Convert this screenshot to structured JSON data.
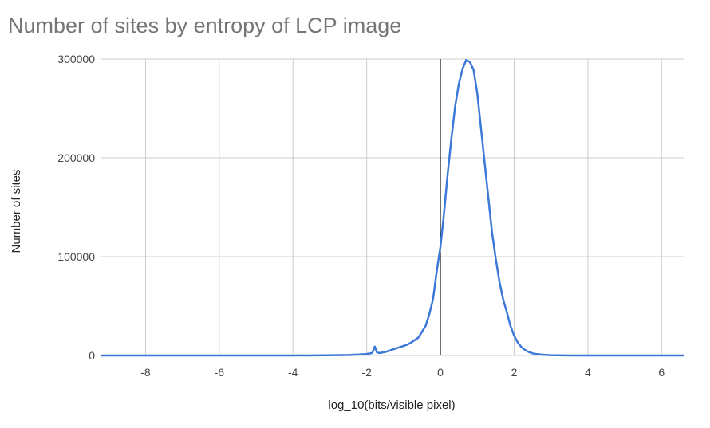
{
  "chart_data": {
    "type": "line",
    "title": "Number of sites by entropy of LCP image",
    "xlabel": "log_10(bits/visible pixel)",
    "ylabel": "Number of sites",
    "xlim": [
      -9.2,
      6.6
    ],
    "ylim": [
      0,
      300000
    ],
    "x_ticks": [
      -8,
      -6,
      -4,
      -2,
      0,
      2,
      4,
      6
    ],
    "x_tick_labels": [
      "-8",
      "-6",
      "-4",
      "-2",
      "0",
      "2",
      "4",
      "6"
    ],
    "y_ticks": [
      0,
      100000,
      200000,
      300000
    ],
    "y_tick_labels": [
      "0",
      "100000",
      "200000",
      "300000"
    ],
    "grid": true,
    "legend": "none",
    "colors": {
      "series": "#3c78d8",
      "grid": "#cccccc",
      "zero_line": "#000000"
    },
    "series": [
      {
        "x": [
          -9.2,
          -4,
          -3,
          -2.5,
          -2.2,
          -2.0,
          -1.85,
          -1.78,
          -1.72,
          -1.65,
          -1.5,
          -1.3,
          -1.1,
          -0.9,
          -0.8,
          -0.6,
          -0.4,
          -0.3,
          -0.2,
          -0.1,
          0,
          0.1,
          0.2,
          0.3,
          0.4,
          0.5,
          0.6,
          0.7,
          0.8,
          0.9,
          1.0,
          1.1,
          1.2,
          1.3,
          1.4,
          1.5,
          1.6,
          1.7,
          1.8,
          1.9,
          2.0,
          2.1,
          2.2,
          2.3,
          2.4,
          2.5,
          2.6,
          2.8,
          3.0,
          3.3,
          3.6,
          4.0,
          6.6
        ],
        "y": [
          0,
          0,
          200,
          500,
          1000,
          1500,
          2500,
          9000,
          3000,
          2500,
          3500,
          6000,
          8500,
          11000,
          13000,
          18000,
          30000,
          42000,
          57000,
          85000,
          110000,
          145000,
          185000,
          220000,
          252000,
          275000,
          290000,
          299000,
          297000,
          289000,
          265000,
          230000,
          195000,
          160000,
          125000,
          98000,
          75000,
          57000,
          44000,
          30000,
          20000,
          13000,
          8500,
          5500,
          3500,
          2200,
          1500,
          700,
          300,
          100,
          0,
          0,
          0
        ]
      }
    ]
  }
}
